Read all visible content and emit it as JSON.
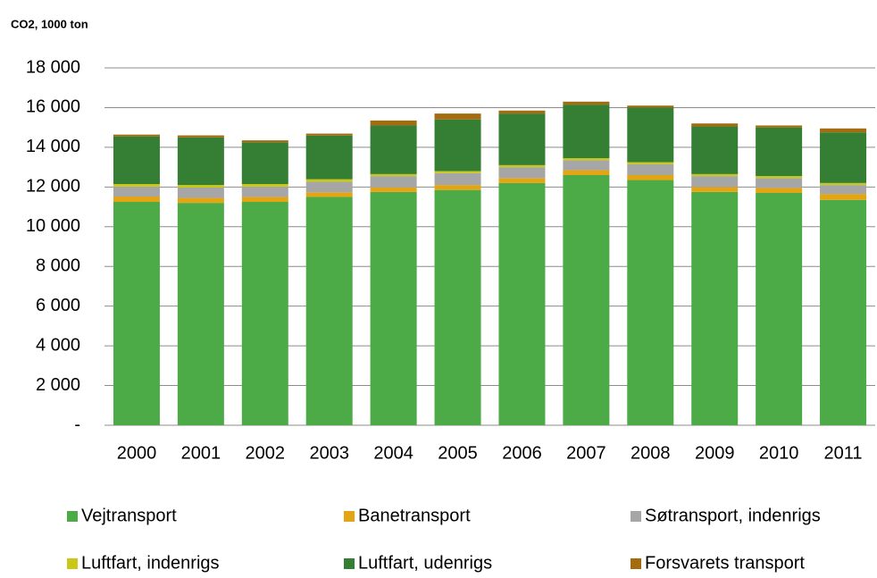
{
  "chart_data": {
    "type": "stacked_bar",
    "title": "CO2, 1000 ton",
    "categories": [
      "2000",
      "2001",
      "2002",
      "2003",
      "2004",
      "2005",
      "2006",
      "2007",
      "2008",
      "2009",
      "2010",
      "2011"
    ],
    "series": [
      {
        "name": "Vejtransport",
        "color": "#4dab47",
        "values": [
          11250,
          11200,
          11250,
          11500,
          11750,
          11850,
          12200,
          12600,
          12350,
          11750,
          11700,
          11350
        ]
      },
      {
        "name": "Banetransport",
        "color": "#e3a514",
        "values": [
          270,
          250,
          250,
          230,
          230,
          250,
          250,
          250,
          250,
          250,
          250,
          300
        ]
      },
      {
        "name": "Søtransport, indenrigs",
        "color": "#a6a6a6",
        "values": [
          500,
          520,
          520,
          530,
          570,
          600,
          550,
          500,
          550,
          550,
          500,
          450
        ]
      },
      {
        "name": "Luftfart, indenrigs",
        "color": "#c9c816",
        "values": [
          130,
          130,
          130,
          130,
          100,
          100,
          100,
          100,
          100,
          100,
          100,
          100
        ]
      },
      {
        "name": "Luftfart, udenrigs",
        "color": "#357f34",
        "values": [
          2400,
          2400,
          2100,
          2200,
          2450,
          2600,
          2600,
          2700,
          2750,
          2400,
          2450,
          2550
        ]
      },
      {
        "name": "Forsvarets transport",
        "color": "#a26c0f",
        "values": [
          90,
          100,
          100,
          100,
          250,
          300,
          150,
          150,
          100,
          150,
          100,
          200
        ]
      }
    ],
    "ylim": [
      0,
      18000
    ],
    "yticks": [
      {
        "value": 0,
        "label": "-"
      },
      {
        "value": 2000,
        "label": "2 000"
      },
      {
        "value": 4000,
        "label": "4 000"
      },
      {
        "value": 6000,
        "label": "6 000"
      },
      {
        "value": 8000,
        "label": "8 000"
      },
      {
        "value": 10000,
        "label": "10 000"
      },
      {
        "value": 12000,
        "label": "12 000"
      },
      {
        "value": 14000,
        "label": "14 000"
      },
      {
        "value": 16000,
        "label": "16 000"
      },
      {
        "value": 18000,
        "label": "18 000"
      }
    ],
    "grid": true
  }
}
